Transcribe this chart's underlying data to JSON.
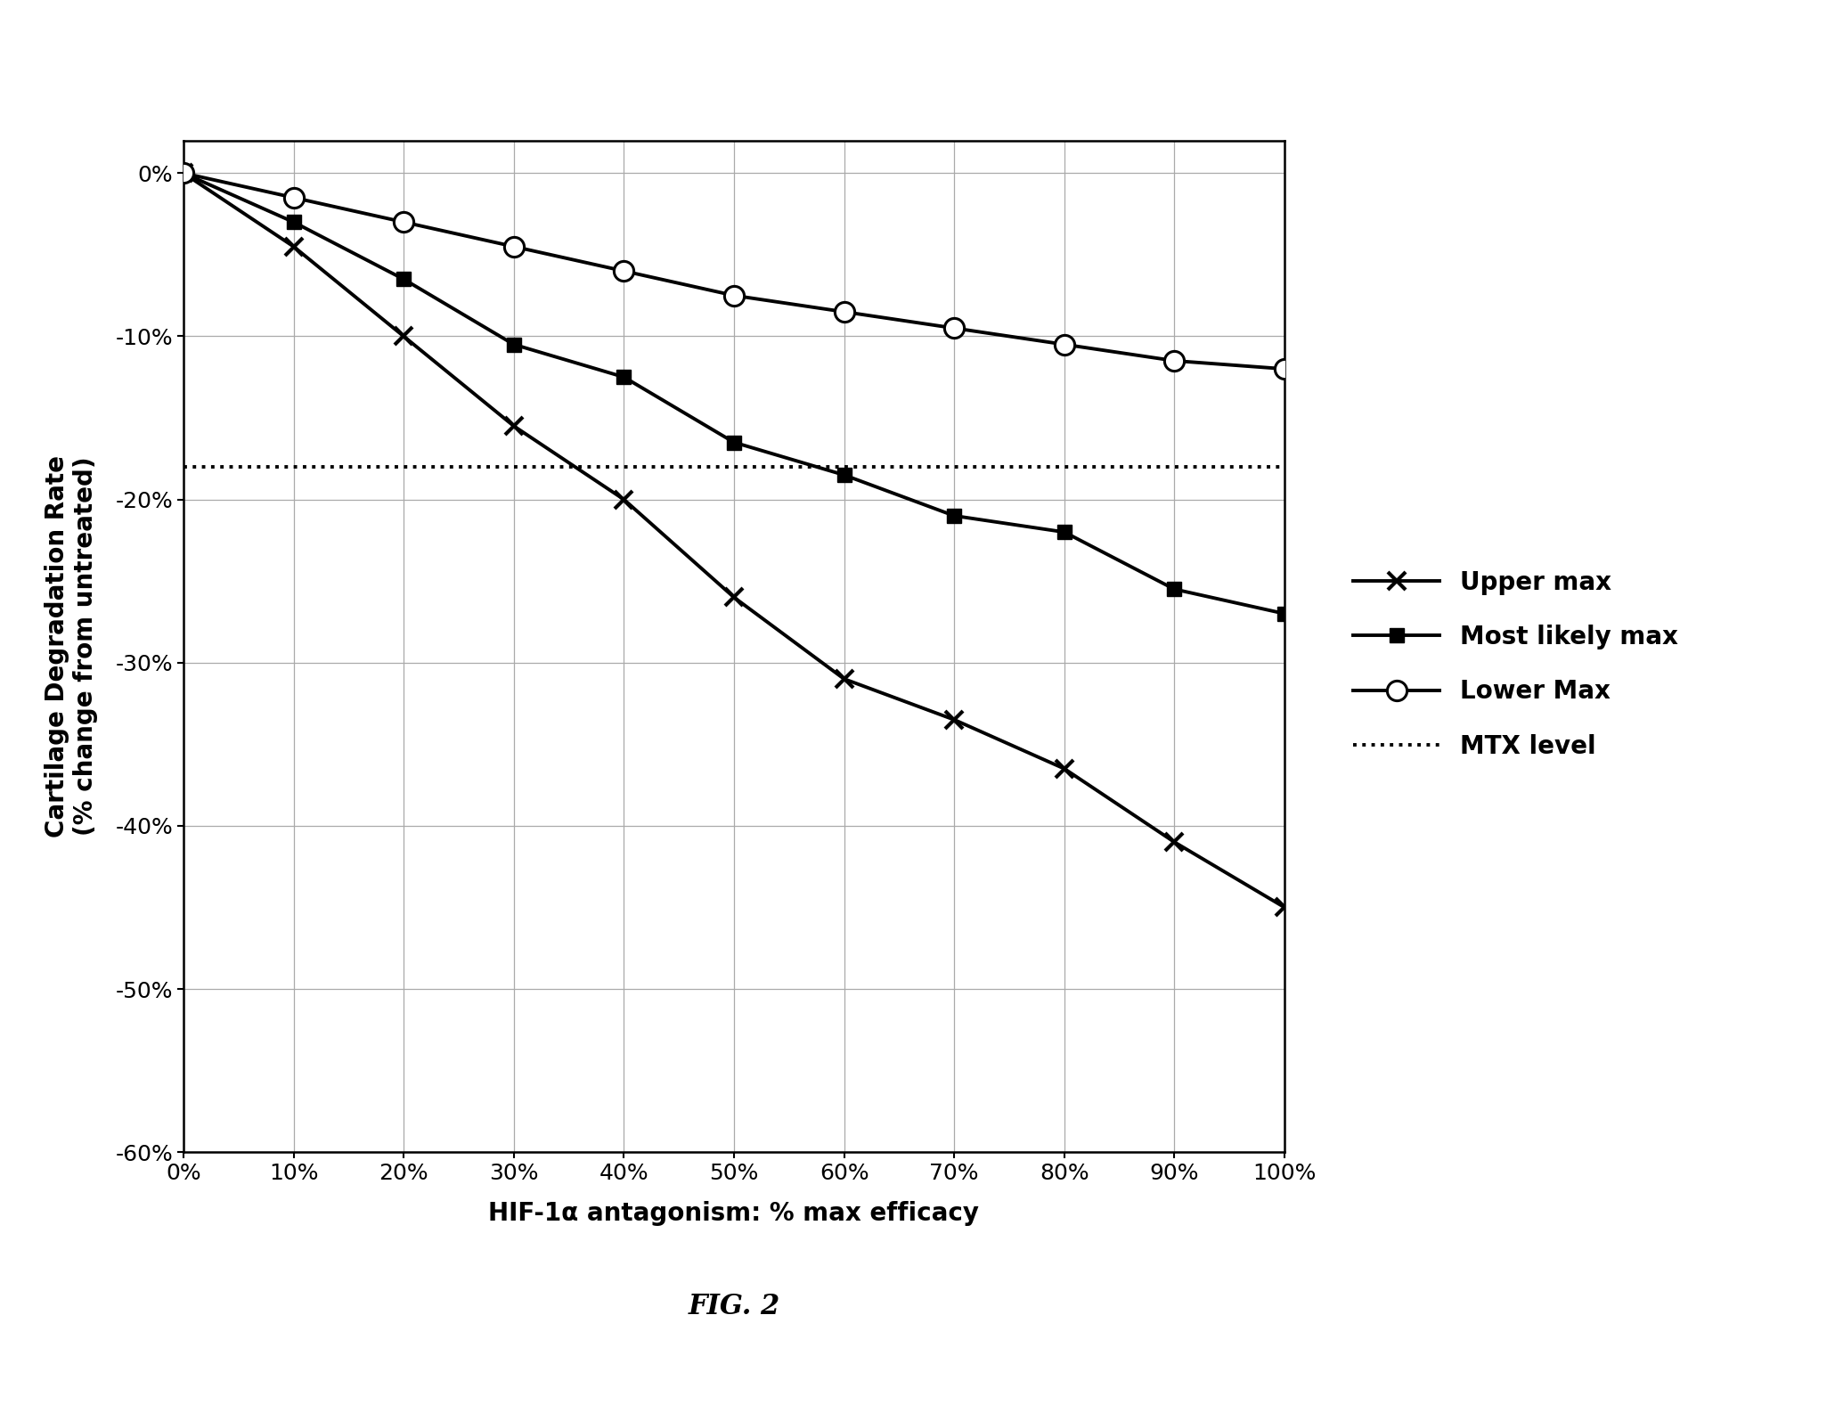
{
  "x": [
    0,
    10,
    20,
    30,
    40,
    50,
    60,
    70,
    80,
    90,
    100
  ],
  "upper_max": [
    0,
    -4.5,
    -10.0,
    -15.5,
    -20.0,
    -26.0,
    -31.0,
    -33.5,
    -36.5,
    -41.0,
    -45.0
  ],
  "most_likely_max": [
    0,
    -3.0,
    -6.5,
    -10.5,
    -12.5,
    -16.5,
    -18.5,
    -21.0,
    -22.0,
    -25.5,
    -27.0
  ],
  "lower_max": [
    0,
    -1.5,
    -3.0,
    -4.5,
    -6.0,
    -7.5,
    -8.5,
    -9.5,
    -10.5,
    -11.5,
    -12.0
  ],
  "mtx_level": -18.0,
  "xlabel": "HIF-1α antagonism: % max efficacy",
  "ylabel": "Cartilage Degradation Rate\n(% change from untreated)",
  "fig_label": "FIG. 2",
  "legend_labels": [
    "Upper max",
    "Most likely max",
    "Lower Max",
    "MTX level"
  ],
  "ylim": [
    -60,
    2
  ],
  "xlim": [
    0,
    100
  ],
  "yticks": [
    0,
    -10,
    -20,
    -30,
    -40,
    -50,
    -60
  ],
  "xticks": [
    0,
    10,
    20,
    30,
    40,
    50,
    60,
    70,
    80,
    90,
    100
  ],
  "background_color": "#ffffff",
  "line_color": "#000000"
}
